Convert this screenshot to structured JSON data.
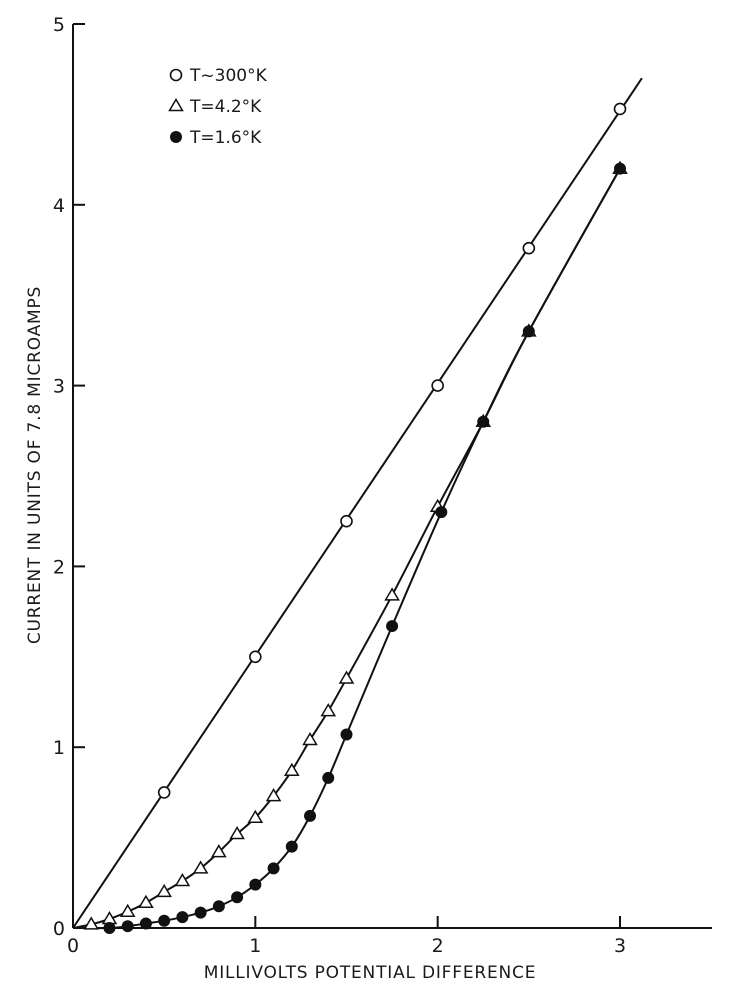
{
  "chart_data": {
    "type": "line",
    "title": "",
    "xlabel": "MILLIVOLTS POTENTIAL DIFFERENCE",
    "ylabel": "CURRENT IN UNITS OF 7.8 MICROAMPS",
    "xlim": [
      0,
      3.5
    ],
    "ylim": [
      0,
      5
    ],
    "x_ticks": [
      0,
      1,
      2,
      3
    ],
    "y_ticks": [
      0,
      1,
      2,
      3,
      4,
      5
    ],
    "x_tick_labels": [
      "0",
      "1",
      "2",
      "3"
    ],
    "y_tick_labels": [
      "0",
      "1",
      "2",
      "3",
      "4",
      "5"
    ],
    "grid": false,
    "legend_position": "top-left",
    "series": [
      {
        "name": "T ~ 300°K",
        "marker": "open-circle",
        "x": [
          0.5,
          1.0,
          1.5,
          2.0,
          2.5,
          3.0
        ],
        "y": [
          0.75,
          1.5,
          2.25,
          3.0,
          3.76,
          4.53
        ],
        "line_x": [
          0,
          3.12
        ],
        "line_y": [
          0,
          4.7
        ]
      },
      {
        "name": "T = 4.2°K",
        "marker": "open-triangle",
        "x": [
          0.1,
          0.2,
          0.3,
          0.4,
          0.5,
          0.6,
          0.7,
          0.8,
          0.9,
          1.0,
          1.1,
          1.2,
          1.3,
          1.4,
          1.5,
          1.75,
          2.0,
          2.25,
          2.5,
          3.0
        ],
        "y": [
          0.02,
          0.05,
          0.09,
          0.14,
          0.2,
          0.26,
          0.33,
          0.42,
          0.52,
          0.61,
          0.73,
          0.87,
          1.04,
          1.2,
          1.38,
          1.84,
          2.33,
          2.8,
          3.3,
          4.2
        ]
      },
      {
        "name": "T = 1.6°K",
        "marker": "filled-circle",
        "x": [
          0.2,
          0.3,
          0.4,
          0.5,
          0.6,
          0.7,
          0.8,
          0.9,
          1.0,
          1.1,
          1.2,
          1.3,
          1.4,
          1.5,
          1.75,
          2.02,
          2.25,
          2.5,
          3.0
        ],
        "y": [
          0.0,
          0.01,
          0.025,
          0.04,
          0.06,
          0.085,
          0.12,
          0.17,
          0.24,
          0.33,
          0.45,
          0.62,
          0.83,
          1.07,
          1.67,
          2.3,
          2.8,
          3.3,
          4.2
        ]
      }
    ],
    "legend": [
      {
        "marker": "open-circle",
        "label": "T~300°K"
      },
      {
        "marker": "open-triangle",
        "label": "T=4.2°K"
      },
      {
        "marker": "filled-circle",
        "label": "T=1.6°K"
      }
    ]
  }
}
